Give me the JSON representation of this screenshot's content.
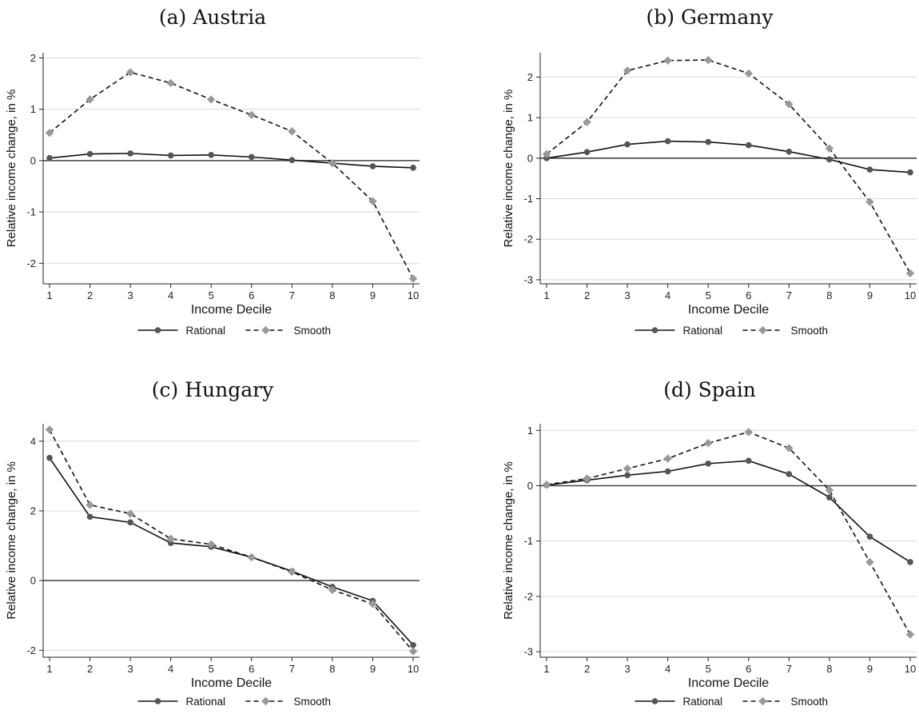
{
  "chart_data": [
    {
      "type": "line",
      "title": "(a) Austria",
      "xlabel": "Income Decile",
      "ylabel": "Relative income change, in %",
      "x": [
        1,
        2,
        3,
        4,
        5,
        6,
        7,
        8,
        9,
        10
      ],
      "ylim": [
        -2.4,
        2.1
      ],
      "yticks": [
        -2,
        -1,
        0,
        1,
        2
      ],
      "grid": true,
      "legend_position": "bottom",
      "series": [
        {
          "name": "Rational",
          "style": "solid",
          "marker": "circle",
          "color": "#555555",
          "values": [
            0.05,
            0.13,
            0.14,
            0.1,
            0.11,
            0.07,
            0.01,
            -0.05,
            -0.11,
            -0.14
          ]
        },
        {
          "name": "Smooth",
          "style": "dashed",
          "marker": "diamond",
          "color": "#999999",
          "values": [
            0.54,
            1.19,
            1.72,
            1.51,
            1.19,
            0.89,
            0.57,
            -0.05,
            -0.79,
            -2.3
          ]
        }
      ]
    },
    {
      "type": "line",
      "title": "(b) Germany",
      "xlabel": "Income Decile",
      "ylabel": "Relative income change, in %",
      "x": [
        1,
        2,
        3,
        4,
        5,
        6,
        7,
        8,
        9,
        10
      ],
      "ylim": [
        -3.1,
        2.6
      ],
      "yticks": [
        -3,
        -2,
        -1,
        0,
        1,
        2
      ],
      "grid": true,
      "legend_position": "bottom",
      "series": [
        {
          "name": "Rational",
          "style": "solid",
          "marker": "circle",
          "color": "#555555",
          "values": [
            0.0,
            0.15,
            0.34,
            0.42,
            0.4,
            0.32,
            0.16,
            -0.03,
            -0.28,
            -0.35
          ]
        },
        {
          "name": "Smooth",
          "style": "dashed",
          "marker": "diamond",
          "color": "#999999",
          "values": [
            0.1,
            0.89,
            2.16,
            2.41,
            2.42,
            2.09,
            1.33,
            0.24,
            -1.08,
            -2.84
          ]
        }
      ]
    },
    {
      "type": "line",
      "title": "(c) Hungary",
      "xlabel": "Income Decile",
      "ylabel": "Relative income change, in %",
      "x": [
        1,
        2,
        3,
        4,
        5,
        6,
        7,
        8,
        9,
        10
      ],
      "ylim": [
        -2.2,
        4.5
      ],
      "yticks": [
        -2,
        0,
        2,
        4
      ],
      "grid": true,
      "legend_position": "bottom",
      "series": [
        {
          "name": "Rational",
          "style": "solid",
          "marker": "circle",
          "color": "#555555",
          "values": [
            3.52,
            1.83,
            1.67,
            1.08,
            0.97,
            0.67,
            0.27,
            -0.18,
            -0.58,
            -1.85
          ]
        },
        {
          "name": "Smooth",
          "style": "dashed",
          "marker": "diamond",
          "color": "#999999",
          "values": [
            4.33,
            2.17,
            1.92,
            1.2,
            1.04,
            0.67,
            0.25,
            -0.27,
            -0.67,
            -2.03
          ]
        }
      ]
    },
    {
      "type": "line",
      "title": "(d) Spain",
      "xlabel": "Income Decile",
      "ylabel": "Relative income change, in %",
      "x": [
        1,
        2,
        3,
        4,
        5,
        6,
        7,
        8,
        9,
        10
      ],
      "ylim": [
        -3.1,
        1.12
      ],
      "yticks": [
        -3,
        -2,
        -1,
        0,
        1
      ],
      "grid": true,
      "legend_position": "bottom",
      "series": [
        {
          "name": "Rational",
          "style": "solid",
          "marker": "circle",
          "color": "#555555",
          "values": [
            0.01,
            0.1,
            0.19,
            0.26,
            0.4,
            0.45,
            0.21,
            -0.21,
            -0.92,
            -1.38
          ]
        },
        {
          "name": "Smooth",
          "style": "dashed",
          "marker": "diamond",
          "color": "#999999",
          "values": [
            0.02,
            0.13,
            0.31,
            0.49,
            0.77,
            0.97,
            0.68,
            -0.08,
            -1.38,
            -2.69
          ]
        }
      ]
    }
  ]
}
